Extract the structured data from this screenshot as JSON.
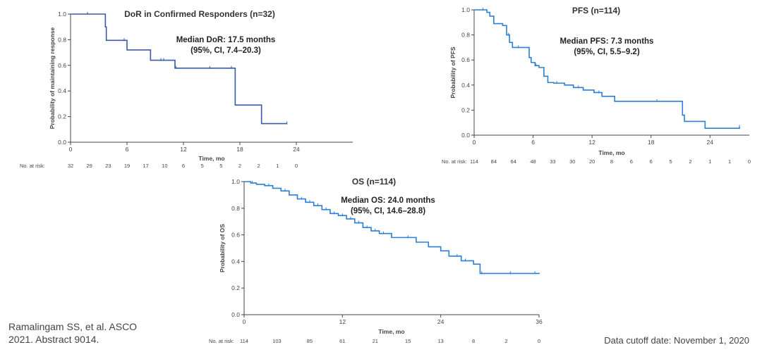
{
  "citation": {
    "line1": "Ramalingam SS, et al. ASCO",
    "line2": "2021. Abstract 9014."
  },
  "cutoff": "Data cutoff date: November 1, 2020",
  "chart_data": [
    {
      "id": "dor",
      "type": "line",
      "step": true,
      "title": "DoR in Confirmed Responders (n=32)",
      "annotation": [
        "Median DoR: 17.5 months",
        "(95%, CI, 7.4–20.3)"
      ],
      "xlabel": "Time, mo",
      "ylabel": "Probability of maintaining response",
      "xlim": [
        0,
        30
      ],
      "ylim": [
        0,
        1
      ],
      "xticks": [
        0,
        6,
        12,
        18,
        24
      ],
      "yticks": [
        0,
        0.2,
        0.4,
        0.6,
        0.8,
        1.0
      ],
      "color": "#3a5ba6",
      "series": [
        {
          "x": [
            0,
            3.6,
            3.7,
            3.8,
            5.9,
            6.0,
            7.9,
            8.5,
            11.0,
            11.1,
            17.3,
            17.5,
            20.3,
            23.0
          ],
          "y": [
            1.0,
            1.0,
            0.9,
            0.795,
            0.795,
            0.72,
            0.72,
            0.64,
            0.64,
            0.578,
            0.578,
            0.29,
            0.145,
            0.145
          ]
        }
      ],
      "censored_x": [
        1.8,
        5.7,
        9.6,
        9.9,
        11.2,
        14.8,
        17.1,
        23.0
      ],
      "risk_label": "No. at risk:",
      "risk_table": {
        "x": [
          0,
          2,
          4,
          6,
          8,
          10,
          12,
          14,
          16,
          18,
          20,
          22,
          24
        ],
        "counts": [
          "32",
          "29",
          "23",
          "19",
          "17",
          "10",
          "6",
          "5",
          "5",
          "2",
          "2",
          "1",
          "0"
        ]
      }
    },
    {
      "id": "pfs",
      "type": "line",
      "step": true,
      "title": "PFS (n=114)",
      "annotation": [
        "Median PFS: 7.3 months",
        "(95%, CI, 5.5–9.2)"
      ],
      "xlabel": "Time, mo",
      "ylabel": "Probability of PFS",
      "xlim": [
        0,
        28
      ],
      "ylim": [
        0,
        1
      ],
      "xticks": [
        0,
        6,
        12,
        18,
        24
      ],
      "yticks": [
        0,
        0.2,
        0.4,
        0.6,
        0.8,
        1.0
      ],
      "color": "#2b7fd6",
      "series": [
        {
          "x": [
            0,
            1.0,
            1.3,
            1.6,
            2.0,
            2.9,
            3.3,
            3.6,
            3.9,
            5.3,
            5.6,
            5.8,
            6.2,
            6.6,
            7.1,
            7.5,
            8.1,
            9.2,
            10.1,
            11.1,
            12.2,
            13.0,
            14.3,
            21.0,
            21.2,
            21.4,
            23.5,
            27.0
          ],
          "y": [
            1.0,
            1.0,
            0.98,
            0.95,
            0.89,
            0.875,
            0.8,
            0.74,
            0.7,
            0.7,
            0.62,
            0.58,
            0.555,
            0.54,
            0.47,
            0.42,
            0.415,
            0.4,
            0.38,
            0.36,
            0.34,
            0.31,
            0.27,
            0.27,
            0.16,
            0.11,
            0.055,
            0.065
          ]
        }
      ],
      "censored_x": [
        0.9,
        3.5,
        4.5,
        6.3,
        8.4,
        10.6,
        12.7,
        18.6,
        27.0
      ],
      "risk_label": "No. at risk:",
      "risk_table": {
        "x": [
          0,
          2,
          4,
          6,
          8,
          10,
          12,
          14,
          16,
          18,
          20,
          22,
          24,
          26,
          28
        ],
        "counts": [
          "114",
          "84",
          "64",
          "48",
          "33",
          "30",
          "20",
          "8",
          "6",
          "6",
          "5",
          "2",
          "1",
          "1",
          "0"
        ]
      }
    },
    {
      "id": "os",
      "type": "line",
      "step": true,
      "title": "OS (n=114)",
      "annotation": [
        "Median OS: 24.0 months",
        "(95%, CI, 14.6–28.8)"
      ],
      "xlabel": "Time, mo",
      "ylabel": "Probability of OS",
      "xlim": [
        0,
        36
      ],
      "ylim": [
        0,
        1
      ],
      "xticks": [
        0,
        12,
        24,
        36
      ],
      "yticks": [
        0,
        0.2,
        0.4,
        0.6,
        0.8,
        1.0
      ],
      "color": "#2b7fd6",
      "series": [
        {
          "x": [
            0,
            0.8,
            1.5,
            2.5,
            3.5,
            4.5,
            5.5,
            6.5,
            7.5,
            8.5,
            9.5,
            10.5,
            11.5,
            12.5,
            13.5,
            14.5,
            15.5,
            16.5,
            18.0,
            19.5,
            21.0,
            22.5,
            24.0,
            25.0,
            26.5,
            28.0,
            28.8,
            30.5,
            36.0
          ],
          "y": [
            1.0,
            0.99,
            0.98,
            0.97,
            0.95,
            0.93,
            0.9,
            0.87,
            0.845,
            0.82,
            0.79,
            0.76,
            0.745,
            0.72,
            0.69,
            0.655,
            0.63,
            0.61,
            0.58,
            0.58,
            0.545,
            0.51,
            0.48,
            0.44,
            0.405,
            0.38,
            0.31,
            0.31,
            0.315
          ]
        }
      ],
      "censored_x": [
        1.0,
        3.0,
        5.0,
        7.0,
        8.0,
        9.0,
        10.0,
        11.0,
        12.0,
        13.0,
        14.0,
        15.0,
        16.0,
        17.0,
        20.0,
        26.0,
        27.0,
        29.0,
        32.5,
        35.5
      ],
      "risk_label": "No. at risk:",
      "risk_table": {
        "x": [
          0,
          4,
          8,
          12,
          16,
          20,
          24,
          28,
          32,
          36
        ],
        "counts": [
          "114",
          "103",
          "85",
          "61",
          "21",
          "15",
          "13",
          "8",
          "2",
          "0"
        ]
      }
    }
  ]
}
